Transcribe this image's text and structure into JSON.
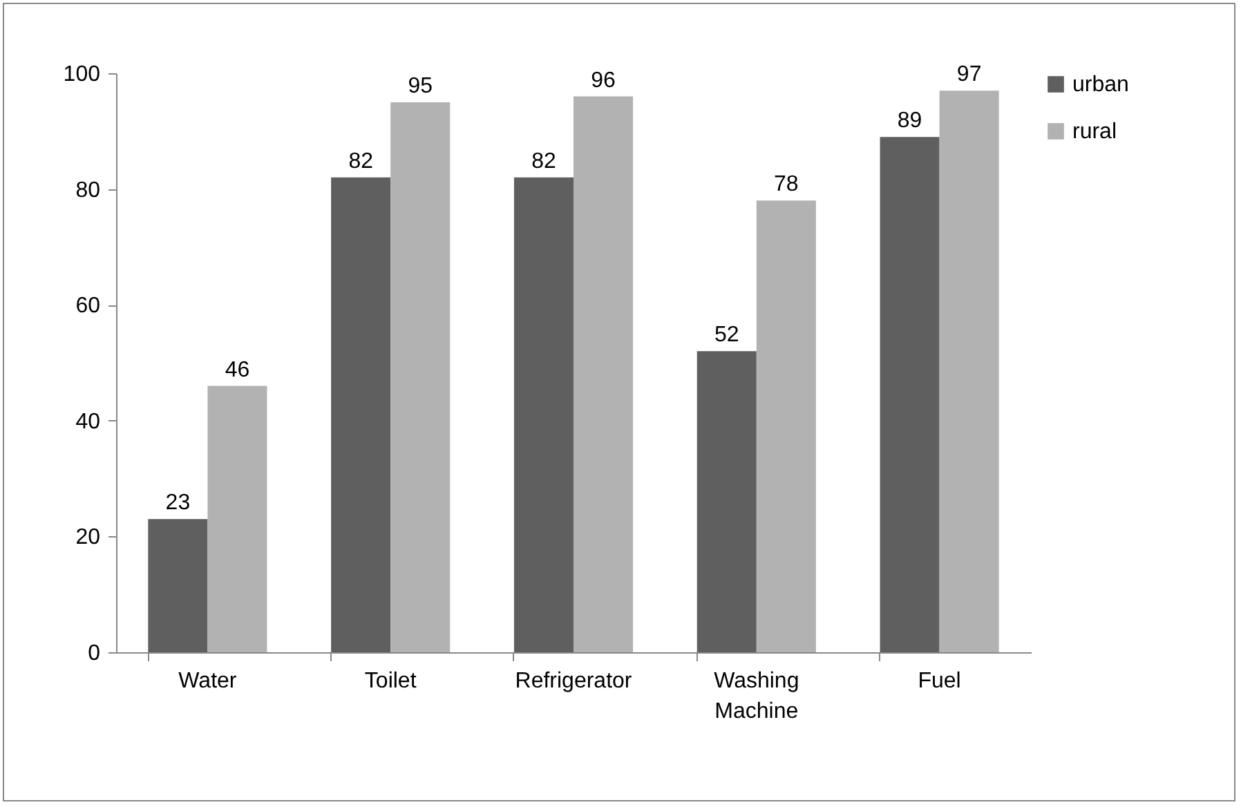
{
  "chart_data": {
    "type": "bar",
    "categories": [
      "Water",
      "Toilet",
      "Refrigerator",
      "Washing Machine",
      "Fuel"
    ],
    "series": [
      {
        "name": "urban",
        "color": "#5f5f5f",
        "values": [
          23,
          82,
          82,
          52,
          89
        ]
      },
      {
        "name": "rural",
        "color": "#b2b2b2",
        "values": [
          46,
          95,
          96,
          78,
          97
        ]
      }
    ],
    "ylim": [
      0,
      100
    ],
    "yticks": [
      0,
      20,
      40,
      60,
      80,
      100
    ],
    "grid": false,
    "legend": "right",
    "data_labels": true
  }
}
